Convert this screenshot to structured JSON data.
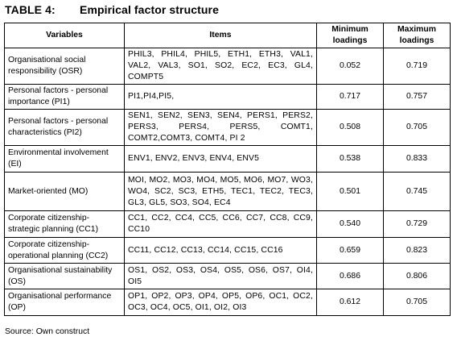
{
  "caption": {
    "label": "TABLE 4:",
    "title": "Empirical factor structure"
  },
  "table": {
    "headers": {
      "variables": "Variables",
      "items": "Items",
      "min": "Minimum loadings",
      "max": "Maximum loadings"
    },
    "rows": [
      {
        "variable": "Organisational social responsibility (OSR)",
        "items": "PHIL3, PHIL4, PHIL5, ETH1, ETH3, VAL1, VAL2, VAL3, SO1, SO2, EC2, EC3, GL4, COMPT5",
        "min": "0.052",
        "max": "0.719"
      },
      {
        "variable": "Personal factors - personal importance (PI1)",
        "items": "PI1,PI4,PI5,",
        "min": "0.717",
        "max": "0.757"
      },
      {
        "variable": "Personal factors - personal characteristics (PI2)",
        "items": "SEN1, SEN2, SEN3, SEN4, PERS1, PERS2, PERS3, PERS4, PERS5, COMT1, COMT2,COMT3, COMT4, PI 2",
        "min": "0.508",
        "max": "0.705"
      },
      {
        "variable": "Environmental involvement (EI)",
        "items": "ENV1, ENV2, ENV3, ENV4, ENV5",
        "min": "0.538",
        "max": "0.833"
      },
      {
        "variable": "Market-oriented (MO)",
        "items": "MOI, MO2, MO3, MO4, MO5, MO6, MO7, WO3, WO4, SC2, SC3, ETH5, TEC1, TEC2, TEC3, GL3, GL5, SO3, SO4, EC4",
        "min": "0.501",
        "max": "0.745"
      },
      {
        "variable": "Corporate citizenship-strategic planning (CC1)",
        "items": "CC1, CC2, CC4, CC5, CC6, CC7, CC8, CC9, CC10",
        "min": "0.540",
        "max": "0.729"
      },
      {
        "variable": "Corporate citizenship-operational planning (CC2)",
        "items": "CC11, CC12, CC13, CC14, CC15, CC16",
        "min": "0.659",
        "max": "0.823"
      },
      {
        "variable": "Organisational sustainability (OS)",
        "items": "OS1, OS2, OS3, OS4, OS5, OS6, OS7, OI4, OI5",
        "min": "0.686",
        "max": "0.806"
      },
      {
        "variable": "Organisational performance (OP)",
        "items": "OP1, OP2, OP3, OP4, OP5, OP6, OC1, OC2, OC3, OC4, OC5, OI1, OI2, OI3",
        "min": "0.612",
        "max": "0.705"
      }
    ]
  },
  "source": "Source: Own construct"
}
